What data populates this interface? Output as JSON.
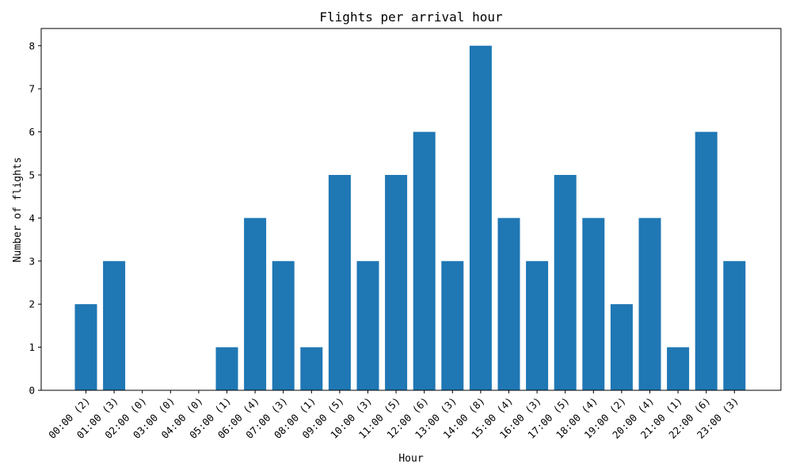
{
  "chart_data": {
    "type": "bar",
    "title": "Flights per arrival hour",
    "xlabel": "Hour",
    "ylabel": "Number of flights",
    "categories": [
      "00:00 (2)",
      "01:00 (3)",
      "02:00 (0)",
      "03:00 (0)",
      "04:00 (0)",
      "05:00 (1)",
      "06:00 (4)",
      "07:00 (3)",
      "08:00 (1)",
      "09:00 (5)",
      "10:00 (3)",
      "11:00 (5)",
      "12:00 (6)",
      "13:00 (3)",
      "14:00 (8)",
      "15:00 (4)",
      "16:00 (3)",
      "17:00 (5)",
      "18:00 (4)",
      "19:00 (2)",
      "20:00 (4)",
      "21:00 (1)",
      "22:00 (6)",
      "23:00 (3)"
    ],
    "values": [
      2,
      3,
      0,
      0,
      0,
      1,
      4,
      3,
      1,
      5,
      3,
      5,
      6,
      3,
      8,
      4,
      3,
      5,
      4,
      2,
      4,
      1,
      6,
      3
    ],
    "ylim": [
      0,
      8.4
    ],
    "yticks": [
      0,
      1,
      2,
      3,
      4,
      5,
      6,
      7,
      8
    ],
    "bar_color": "#1f77b4",
    "grid": false,
    "legend": "none"
  }
}
